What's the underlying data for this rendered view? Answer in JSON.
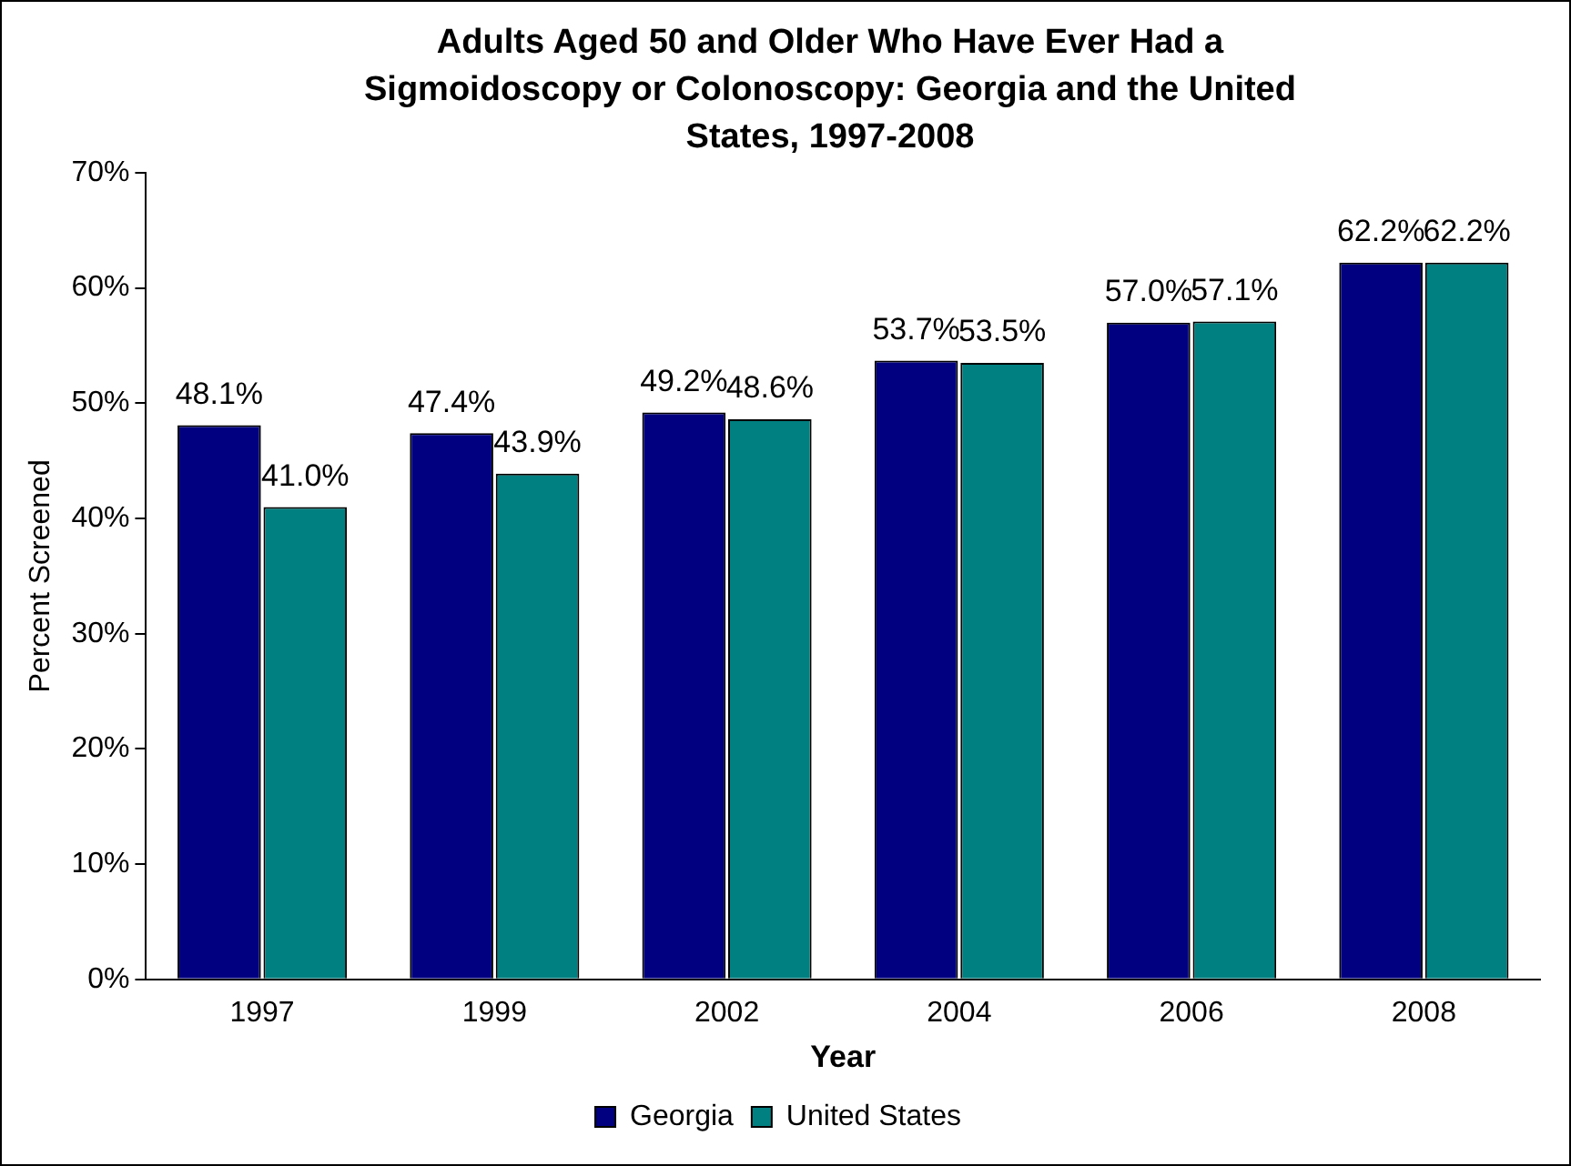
{
  "chart_data": {
    "type": "bar",
    "title": "Adults Aged 50 and Older Who Have Ever Had a Sigmoidoscopy or Colonoscopy: Georgia and the United States, 1997-2008",
    "xlabel": "Year",
    "ylabel": "Percent Screened",
    "categories": [
      "1997",
      "1999",
      "2002",
      "2004",
      "2006",
      "2008"
    ],
    "series": [
      {
        "name": "Georgia",
        "color": "#000080",
        "values": [
          48.1,
          47.4,
          49.2,
          53.7,
          57.0,
          62.2
        ],
        "value_labels": [
          "48.1%",
          "47.4%",
          "49.2%",
          "53.7%",
          "57.0%",
          "62.2%"
        ]
      },
      {
        "name": "United States",
        "color": "#008080",
        "values": [
          41.0,
          43.9,
          48.6,
          53.5,
          57.1,
          62.2
        ],
        "value_labels": [
          "41.0%",
          "43.9%",
          "48.6%",
          "53.5%",
          "57.1%",
          "62.2%"
        ]
      }
    ],
    "ylim": [
      0,
      70
    ],
    "yticks": [
      {
        "value": 0,
        "label": "0%"
      },
      {
        "value": 10,
        "label": "10%"
      },
      {
        "value": 20,
        "label": "20%"
      },
      {
        "value": 30,
        "label": "30%"
      },
      {
        "value": 40,
        "label": "40%"
      },
      {
        "value": 50,
        "label": "50%"
      },
      {
        "value": 60,
        "label": "60%"
      },
      {
        "value": 70,
        "label": "70%"
      }
    ],
    "grid": false,
    "legend": "bottom"
  }
}
